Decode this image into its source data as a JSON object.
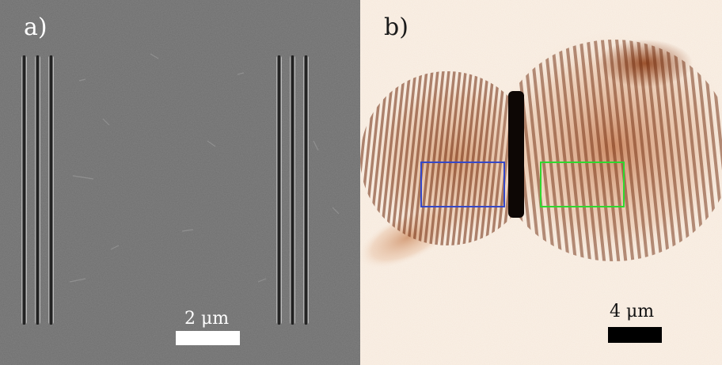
{
  "panel_a": {
    "label": "a)",
    "scale_bar_label": "2 μm",
    "image_type": "grayscale electron micrograph with two groups of three vertical slits"
  },
  "panel_b": {
    "label": "b)",
    "scale_bar_label": "4 μm",
    "image_type": "fringe interference pattern in orange-brown colormap",
    "box_colors": {
      "left": "#3548c8",
      "right": "#2fd82f"
    }
  }
}
